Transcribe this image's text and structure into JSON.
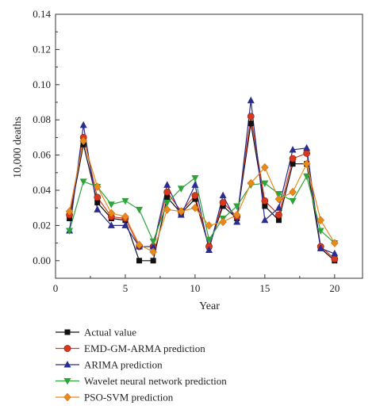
{
  "chart_data": {
    "type": "line",
    "xlabel": "Year",
    "ylabel": "10,000 deaths",
    "xlim": [
      0,
      22
    ],
    "ylim": [
      -0.01,
      0.14
    ],
    "xticks": [
      0,
      5,
      10,
      15,
      20
    ],
    "yticks": [
      0.0,
      0.02,
      0.04,
      0.06,
      0.08,
      0.1,
      0.12,
      0.14
    ],
    "ytick_labels": [
      "0.00",
      "0.02",
      "0.04",
      "0.06",
      "0.08",
      "0.10",
      "0.12",
      "0.14"
    ],
    "x": [
      1,
      2,
      3,
      4,
      5,
      6,
      7,
      8,
      9,
      10,
      11,
      12,
      13,
      14,
      15,
      16,
      17,
      18,
      19,
      20
    ],
    "legend_position": "below",
    "series": [
      {
        "name": "Actual value",
        "color": "#111111",
        "marker": "square",
        "values": [
          0.024,
          0.066,
          0.033,
          0.024,
          0.023,
          0.0,
          0.0,
          0.036,
          0.027,
          0.035,
          0.008,
          0.031,
          0.024,
          0.078,
          0.031,
          0.023,
          0.055,
          0.055,
          0.007,
          0.0
        ]
      },
      {
        "name": "EMD-GM-ARMA prediction",
        "color": "#d9381e",
        "marker": "circle",
        "values": [
          0.026,
          0.07,
          0.036,
          0.025,
          0.024,
          0.008,
          0.008,
          0.039,
          0.028,
          0.037,
          0.008,
          0.033,
          0.025,
          0.082,
          0.034,
          0.026,
          0.058,
          0.061,
          0.008,
          0.001
        ]
      },
      {
        "name": "ARIMA prediction",
        "color": "#2b2d8e",
        "marker": "triangle-up",
        "values": [
          0.017,
          0.077,
          0.029,
          0.02,
          0.02,
          0.008,
          0.008,
          0.043,
          0.026,
          0.043,
          0.006,
          0.037,
          0.022,
          0.091,
          0.023,
          0.03,
          0.063,
          0.064,
          0.007,
          0.004
        ]
      },
      {
        "name": "Wavelet neural network prediction",
        "color": "#2fa33b",
        "marker": "triangle-down",
        "values": [
          0.017,
          0.045,
          0.042,
          0.032,
          0.034,
          0.029,
          0.011,
          0.033,
          0.041,
          0.047,
          0.012,
          0.024,
          0.031,
          0.043,
          0.044,
          0.038,
          0.034,
          0.048,
          0.017,
          0.01
        ]
      },
      {
        "name": "PSO-SVM prediction",
        "color": "#e8891c",
        "marker": "diamond",
        "values": [
          0.028,
          0.068,
          0.042,
          0.027,
          0.025,
          0.009,
          0.005,
          0.029,
          0.028,
          0.03,
          0.02,
          0.022,
          0.026,
          0.044,
          0.053,
          0.035,
          0.039,
          0.055,
          0.023,
          0.01
        ]
      }
    ]
  }
}
